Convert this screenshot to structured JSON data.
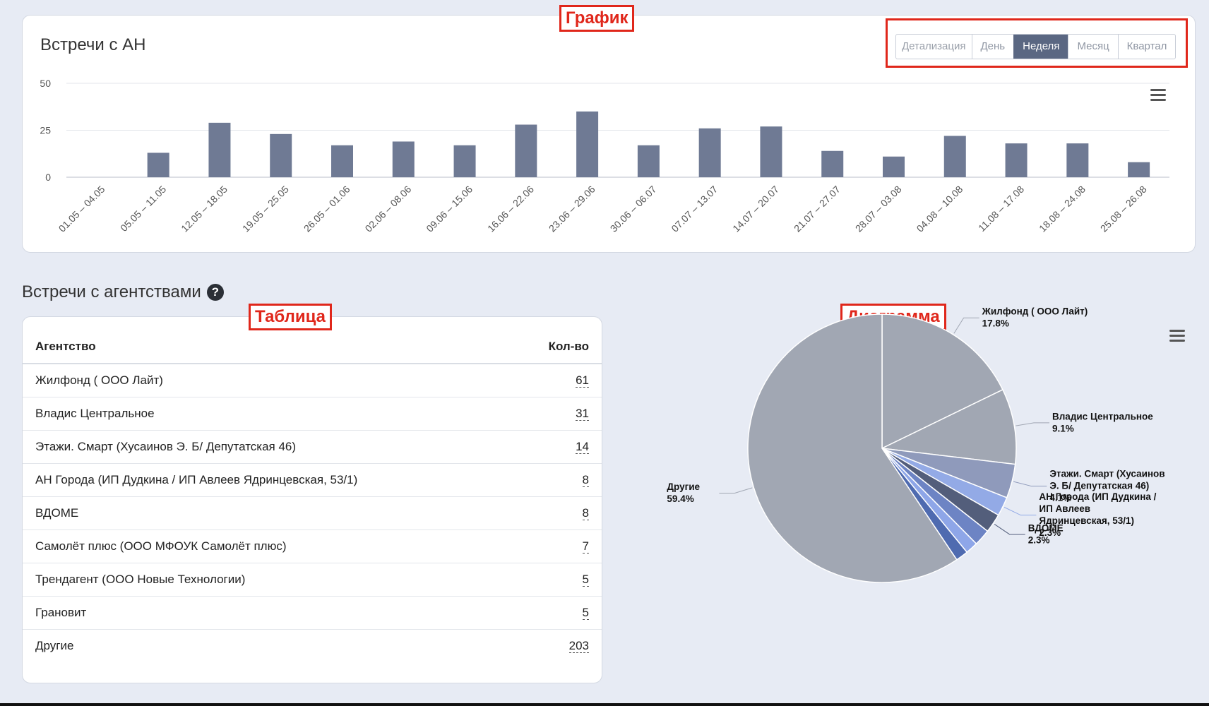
{
  "chart_section": {
    "title": "Встречи с АН",
    "detail_label": "Детализация",
    "detail_buttons": [
      "День",
      "Неделя",
      "Месяц",
      "Квартал"
    ],
    "active_detail": "Неделя",
    "annotation": "График"
  },
  "agencies_section": {
    "title": "Встречи с агентствами",
    "table_annotation": "Таблица",
    "pie_annotation": "Диаграмма",
    "table": {
      "col_agency": "Агентство",
      "col_count": "Кол-во",
      "rows": [
        {
          "name": "Жилфонд ( ООО Лайт)",
          "count": "61"
        },
        {
          "name": "Владис Центральное",
          "count": "31"
        },
        {
          "name": "Этажи. Смарт (Хусаинов Э. Б/ Депутатская 46)",
          "count": "14"
        },
        {
          "name": "АН Города (ИП Дудкина / ИП Авлеев Ядринцевская, 53/1)",
          "count": "8"
        },
        {
          "name": "ВДОМЕ",
          "count": "8"
        },
        {
          "name": "Самолёт плюс (ООО МФОУК Самолёт плюс)",
          "count": "7"
        },
        {
          "name": "Трендагент (ООО Новые Технологии)",
          "count": "5"
        },
        {
          "name": "Грановит",
          "count": "5"
        },
        {
          "name": "Другие",
          "count": "203"
        }
      ]
    }
  },
  "chart_data": [
    {
      "type": "bar",
      "categories": [
        "01.05 – 04.05",
        "05.05 – 11.05",
        "12.05 – 18.05",
        "19.05 – 25.05",
        "26.05 – 01.06",
        "02.06 – 08.06",
        "09.06 – 15.06",
        "16.06 – 22.06",
        "23.06 – 29.06",
        "30.06 – 06.07",
        "07.07 – 13.07",
        "14.07 – 20.07",
        "21.07 – 27.07",
        "28.07 – 03.08",
        "04.08 – 10.08",
        "11.08 – 17.08",
        "18.08 – 24.08",
        "25.08 – 26.08"
      ],
      "values": [
        0,
        13,
        29,
        23,
        17,
        19,
        17,
        28,
        35,
        17,
        26,
        27,
        14,
        11,
        22,
        18,
        18,
        8
      ],
      "ylim": [
        0,
        50
      ],
      "yticks": [
        "0",
        "25",
        "50"
      ],
      "bar_color": "#6f7a94",
      "grid": true
    },
    {
      "type": "pie",
      "slices": [
        {
          "name": "Жилфонд ( ООО Лайт)",
          "value": 17.8,
          "label": "17.8%",
          "color": "#a1a7b3"
        },
        {
          "name": "Владис Центральное",
          "value": 9.1,
          "label": "9.1%",
          "color": "#a1a7b3"
        },
        {
          "name": "Этажи. Смарт (Хусаинов Э. Б/ Депутатская 46)",
          "value": 4.1,
          "label": "4.1%",
          "color": "#8f9abb"
        },
        {
          "name": "АН Города (ИП Дудкина / ИП Авлеев Ядринцевская, 53/1)",
          "value": 2.3,
          "label": "2.3%",
          "color": "#93aae6"
        },
        {
          "name": "ВДОМЕ",
          "value": 2.3,
          "label": "2.3%",
          "color": "#535e7b"
        },
        {
          "name": "Самолёт плюс (ООО МФОУК Самолёт плюс)",
          "value": 2.0,
          "label": "",
          "color": "#6d84c4"
        },
        {
          "name": "Трендагент (ООО Новые Технологии)",
          "value": 1.5,
          "label": "",
          "color": "#8ea6e8"
        },
        {
          "name": "Грановит",
          "value": 1.5,
          "label": "",
          "color": "#4f6bb0"
        },
        {
          "name": "Другие",
          "value": 59.4,
          "label": "59.4%",
          "color": "#a1a7b3"
        }
      ],
      "label_lines": {
        "Жилфонд ( ООО Лайт)": [
          "Жилфонд ( ООО Лайт)"
        ],
        "Владис Центральное": [
          "Владис Центральное"
        ],
        "Этажи. Смарт (Хусаинов Э. Б/ Депутатская 46)": [
          "Этажи. Смарт (Хусаинов",
          "Э. Б/ Депутатская 46)"
        ],
        "АН Города (ИП Дудкина / ИП Авлеев Ядринцевская, 53/1)": [
          "АН Города (ИП Дудкина /",
          "ИП Авлеев",
          "Ядринцевская, 53/1)"
        ],
        "ВДОМЕ": [
          "ВДОМЕ"
        ],
        "Другие": [
          "Другие"
        ]
      }
    }
  ]
}
